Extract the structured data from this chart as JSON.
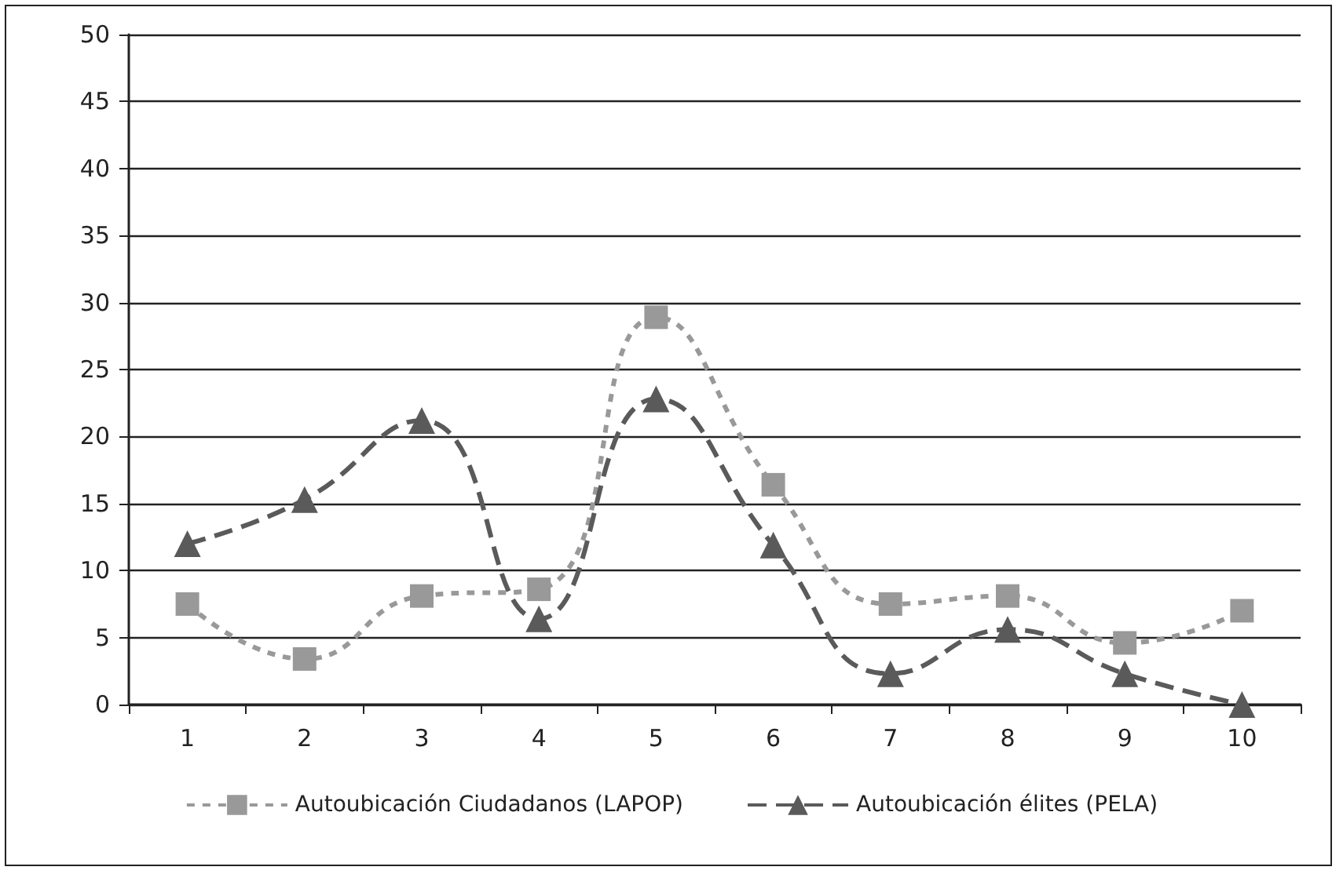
{
  "chart_data": {
    "type": "line",
    "categories": [
      "1",
      "2",
      "3",
      "4",
      "5",
      "6",
      "7",
      "8",
      "9",
      "10"
    ],
    "series": [
      {
        "name": "Autoubicación Ciudadanos (LAPOP)",
        "color": "#999999",
        "marker": "square",
        "values": [
          7.5,
          3.4,
          8.1,
          8.6,
          28.9,
          16.4,
          7.5,
          8.1,
          4.6,
          7.0
        ]
      },
      {
        "name": "Autoubicación élites (PELA)",
        "color": "#5a5a5a",
        "marker": "triangle",
        "values": [
          12.0,
          15.3,
          21.2,
          6.4,
          22.8,
          11.9,
          2.3,
          5.6,
          2.3,
          0
        ]
      }
    ],
    "ylim": [
      0,
      50
    ],
    "yticks": [
      0,
      5,
      10,
      15,
      20,
      25,
      30,
      35,
      40,
      45,
      50
    ],
    "grid": "y",
    "legend": "bottom",
    "line_style": "dashed"
  }
}
